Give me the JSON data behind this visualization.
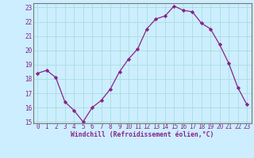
{
  "x": [
    0,
    1,
    2,
    3,
    4,
    5,
    6,
    7,
    8,
    9,
    10,
    11,
    12,
    13,
    14,
    15,
    16,
    17,
    18,
    19,
    20,
    21,
    22,
    23
  ],
  "y": [
    18.4,
    18.6,
    18.1,
    16.4,
    15.8,
    15.0,
    16.0,
    16.5,
    17.3,
    18.5,
    19.4,
    20.1,
    21.5,
    22.2,
    22.4,
    23.1,
    22.8,
    22.7,
    21.9,
    21.5,
    20.4,
    19.1,
    17.4,
    16.2
  ],
  "line_color": "#882288",
  "marker": "D",
  "marker_size": 2.2,
  "bg_color": "#cceeff",
  "grid_color": "#aadddd",
  "xlabel": "Windchill (Refroidissement éolien,°C)",
  "ylim": [
    15,
    23
  ],
  "xlim": [
    -0.5,
    23.5
  ],
  "yticks": [
    15,
    16,
    17,
    18,
    19,
    20,
    21,
    22,
    23
  ],
  "xticks": [
    0,
    1,
    2,
    3,
    4,
    5,
    6,
    7,
    8,
    9,
    10,
    11,
    12,
    13,
    14,
    15,
    16,
    17,
    18,
    19,
    20,
    21,
    22,
    23
  ],
  "tick_color": "#882288",
  "label_fontsize": 5.8,
  "tick_fontsize": 5.5,
  "ytick_fontsize": 5.5
}
